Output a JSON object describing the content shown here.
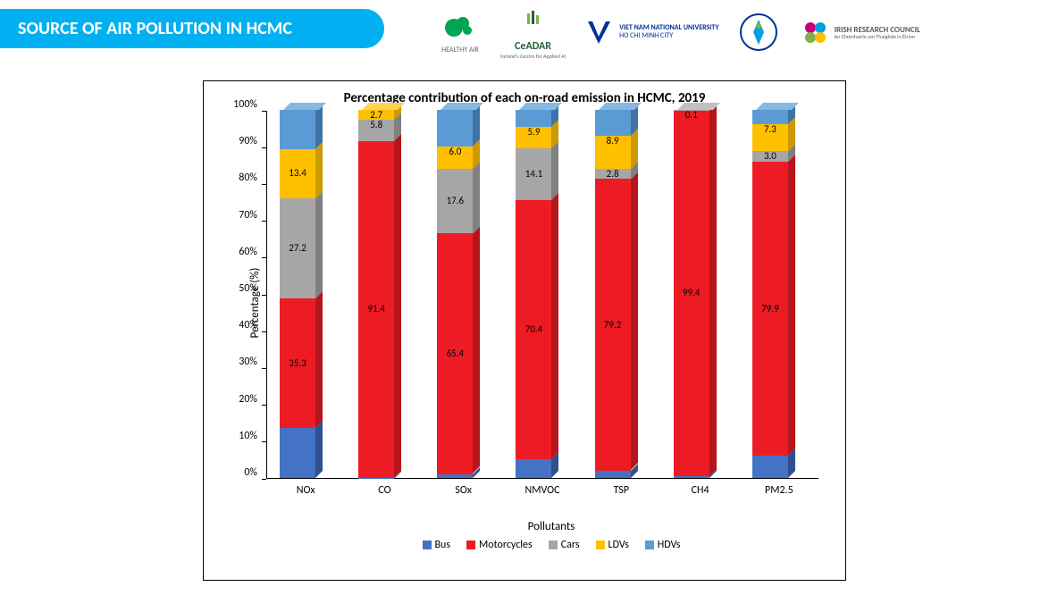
{
  "header": {
    "title": "SOURCE OF AIR POLLUTION IN HCMC",
    "logos": [
      {
        "name": "HEALTHY AIR",
        "color": "#00a651"
      },
      {
        "name": "CeADAR",
        "sub": "Ireland's Centre for Applied AI",
        "color": "#2e5c3e"
      },
      {
        "name": "VIET NAM NATIONAL UNIVERSITY",
        "sub": "HO CHI MINH CITY",
        "color": "#003399"
      },
      {
        "name": "",
        "color": "#00a0e3"
      },
      {
        "name": "IRISH RESEARCH COUNCIL",
        "sub": "An Chomhairle um Thaighde in Éirinn",
        "color": "#c4007a"
      }
    ]
  },
  "chart": {
    "type": "stacked-bar-3d",
    "title": "Percentage contribution of each on-road emission in HCMC, 2019",
    "x_axis_title": "Pollutants",
    "y_axis_title": "Percentage (%)",
    "ylim": [
      0,
      100
    ],
    "ytick_step": 10,
    "ytick_format": "percent",
    "categories": [
      "NOx",
      "CO",
      "SOx",
      "NMVOC",
      "TSP",
      "CH4",
      "PM2.5"
    ],
    "series": [
      {
        "name": "Bus",
        "color": "#4472c4",
        "color_top": "#6a8fd6",
        "color_side": "#2f4f8f"
      },
      {
        "name": "Motorcycles",
        "color": "#ed1c24",
        "color_top": "#f25a5f",
        "color_side": "#b5151b"
      },
      {
        "name": "Cars",
        "color": "#a6a6a6",
        "color_top": "#c0c0c0",
        "color_side": "#808080"
      },
      {
        "name": "LDVs",
        "color": "#ffc000",
        "color_top": "#ffd34d",
        "color_side": "#cc9a00"
      },
      {
        "name": "HDVs",
        "color": "#5b9bd5",
        "color_top": "#85b8e2",
        "color_side": "#3f73a3"
      }
    ],
    "columns": [
      {
        "category": "NOx",
        "values": [
          13.5,
          35.3,
          27.2,
          13.4,
          10.6
        ],
        "labels": [
          "",
          "35.3",
          "27.2",
          "13.4",
          ""
        ]
      },
      {
        "category": "CO",
        "values": [
          0.1,
          91.4,
          5.8,
          2.7,
          0.0
        ],
        "labels": [
          "",
          "91.4",
          "5.8",
          "2.7",
          ""
        ]
      },
      {
        "category": "SOx",
        "values": [
          1.0,
          65.4,
          17.6,
          6.0,
          10.0
        ],
        "labels": [
          "",
          "65.4",
          "17.6",
          "6.0",
          ""
        ]
      },
      {
        "category": "NMVOC",
        "values": [
          5.0,
          70.4,
          14.1,
          5.9,
          4.6
        ],
        "labels": [
          "",
          "70.4",
          "14.1",
          "5.9",
          ""
        ]
      },
      {
        "category": "TSP",
        "values": [
          2.0,
          79.2,
          2.8,
          8.9,
          7.1
        ],
        "labels": [
          "",
          "79.2",
          "2.8",
          "8.9",
          ""
        ]
      },
      {
        "category": "CH4",
        "values": [
          0.5,
          99.4,
          0.1,
          0.0,
          0.0
        ],
        "labels": [
          "",
          "99.4",
          "0.1",
          "",
          ""
        ]
      },
      {
        "category": "PM2.5",
        "values": [
          6.0,
          79.9,
          3.0,
          7.3,
          3.8
        ],
        "labels": [
          "",
          "79.9",
          "3.0",
          "7.3",
          ""
        ]
      }
    ],
    "background_color": "#ffffff",
    "title_fontsize": 15,
    "label_fontsize": 12
  }
}
